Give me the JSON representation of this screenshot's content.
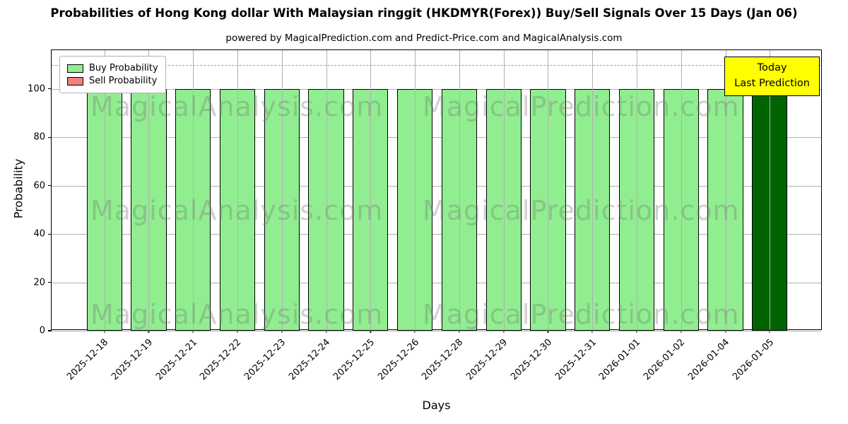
{
  "header": {
    "title": "Probabilities of Hong Kong dollar With Malaysian ringgit (HKDMYR(Forex)) Buy/Sell Signals Over 15 Days (Jan 06)",
    "subtitle": "powered by MagicalPrediction.com and Predict-Price.com and MagicalAnalysis.com"
  },
  "chart_data": {
    "type": "bar",
    "title": "Probabilities of Hong Kong dollar With Malaysian ringgit (HKDMYR(Forex)) Buy/Sell Signals Over 15 Days (Jan 06)",
    "xlabel": "Days",
    "ylabel": "Probability",
    "ylim": [
      0,
      116
    ],
    "yticks": [
      0,
      20,
      40,
      60,
      80,
      100
    ],
    "grid": true,
    "legend_position": "upper left",
    "categories": [
      "2025-12-18",
      "2025-12-19",
      "2025-12-21",
      "2025-12-22",
      "2025-12-23",
      "2025-12-24",
      "2025-12-25",
      "2025-12-26",
      "2025-12-28",
      "2025-12-29",
      "2025-12-30",
      "2025-12-31",
      "2026-01-01",
      "2026-01-02",
      "2026-01-04",
      "2026-01-05"
    ],
    "series": [
      {
        "name": "Buy Probability",
        "color": "#90EE90",
        "values": [
          100,
          100,
          100,
          100,
          100,
          100,
          100,
          100,
          100,
          100,
          100,
          100,
          100,
          100,
          100,
          100
        ]
      },
      {
        "name": "Sell Probability",
        "color": "#F08080",
        "values": [
          0,
          0,
          0,
          0,
          0,
          0,
          0,
          0,
          0,
          0,
          0,
          0,
          0,
          0,
          0,
          0
        ]
      }
    ],
    "highlight": {
      "index": 15,
      "color": "#006400"
    },
    "dashed_line_y": 110
  },
  "annotations": {
    "today_line1": "Today",
    "today_line2": "Last Prediction"
  },
  "watermark": {
    "texts": [
      "MagicalAnalysis.com",
      "MagicalPrediction.com"
    ]
  }
}
